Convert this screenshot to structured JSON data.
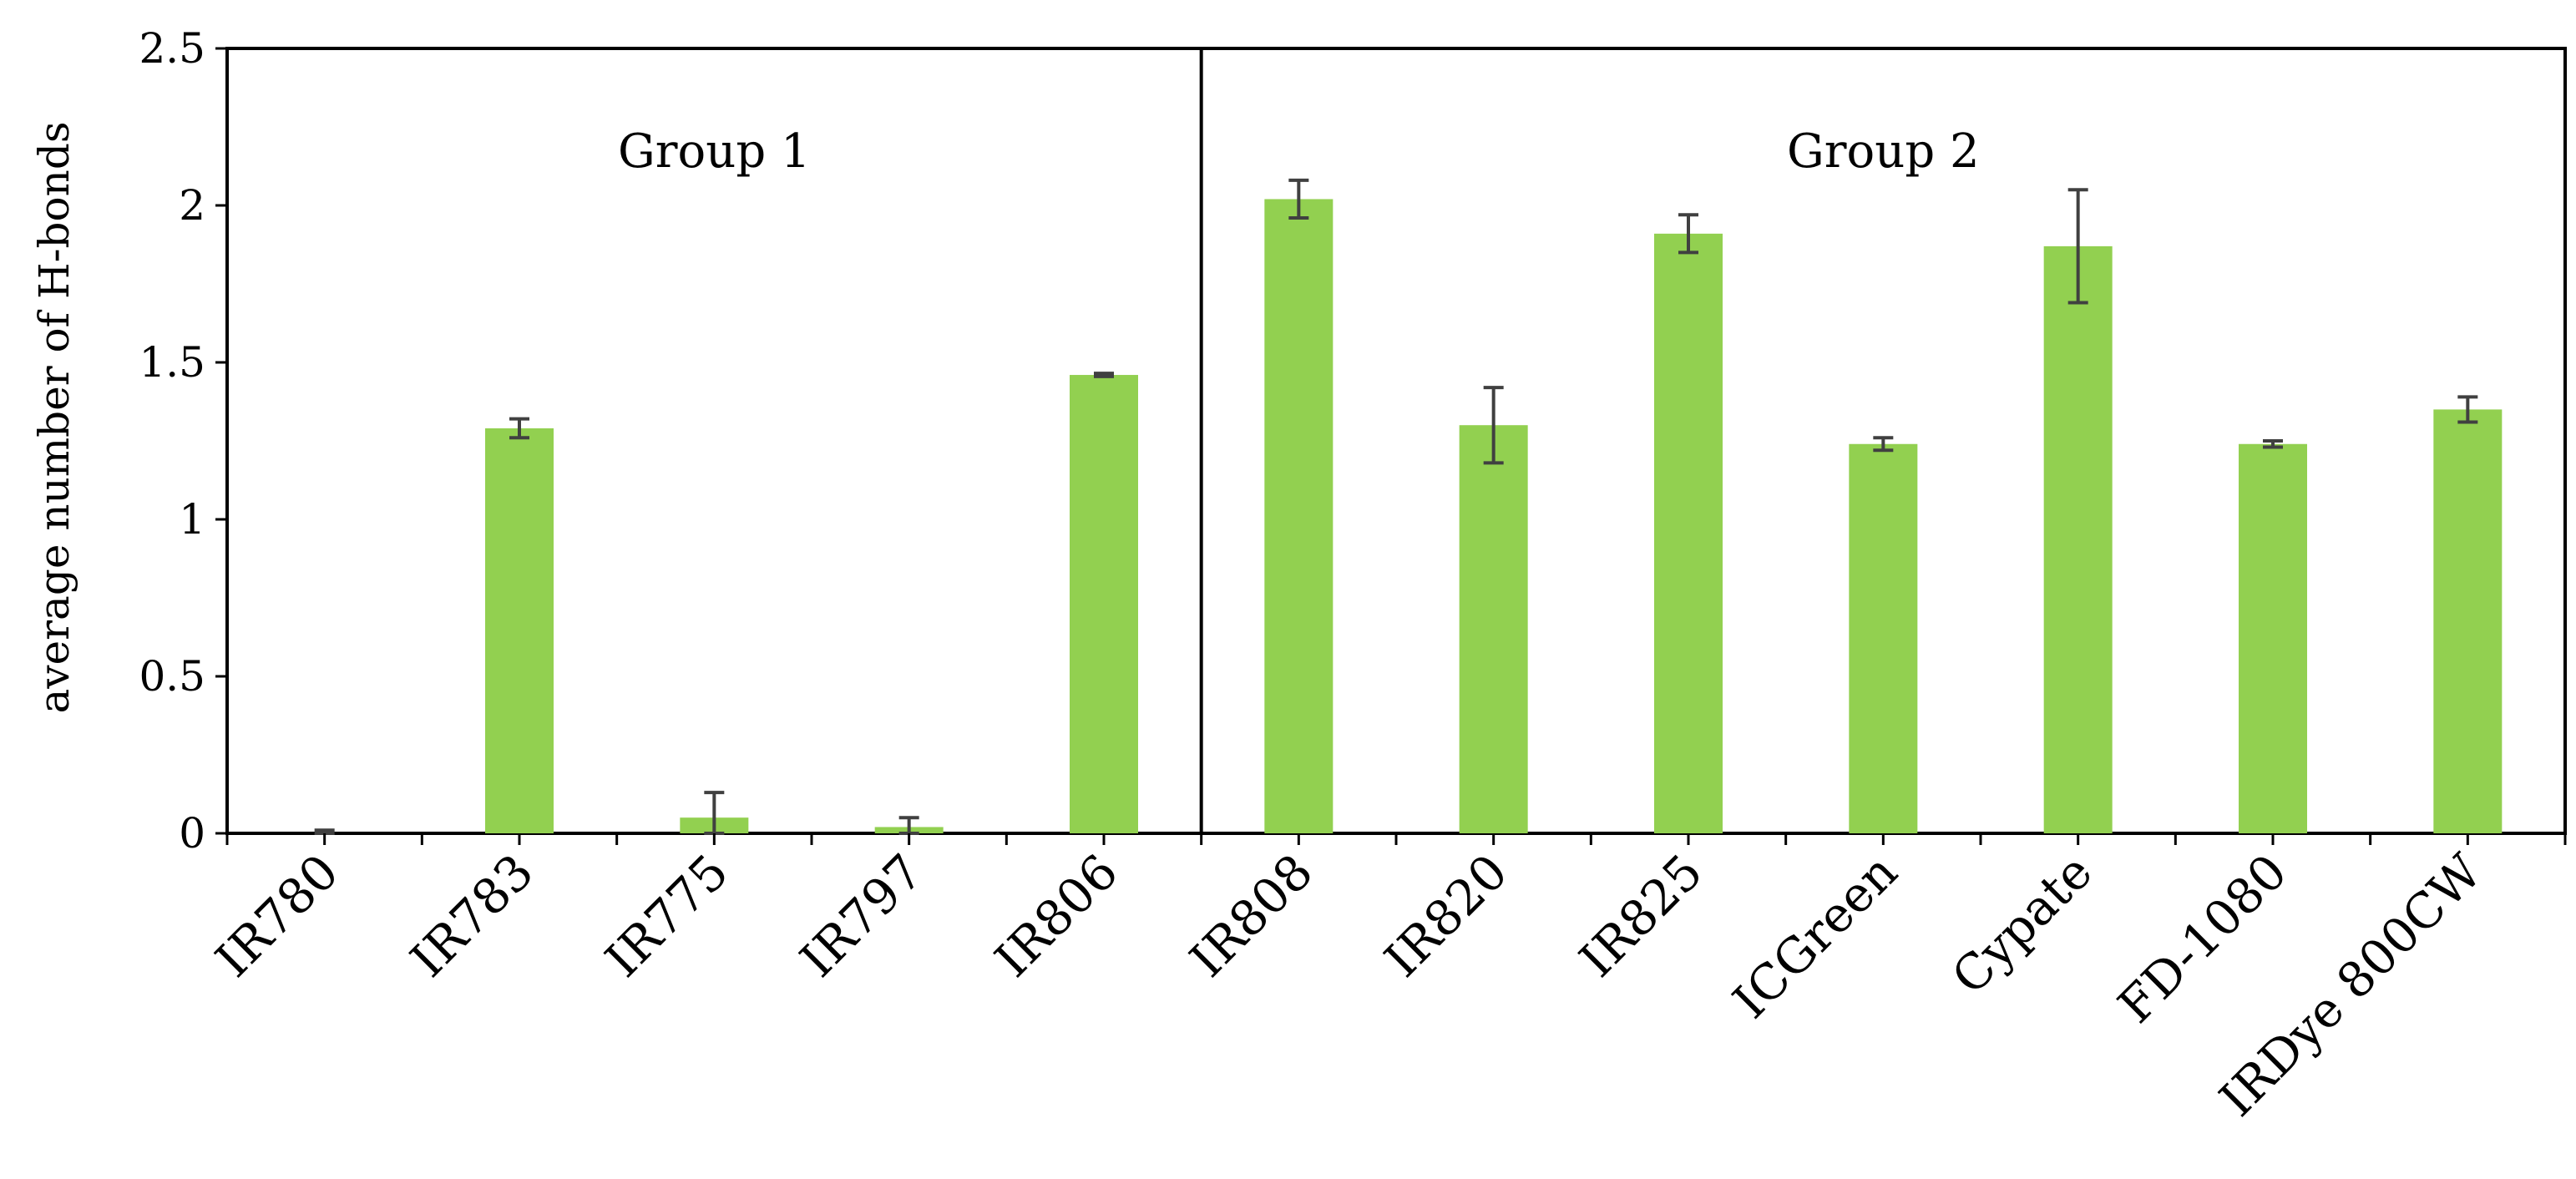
{
  "chart_data": {
    "type": "bar",
    "title": "",
    "ylabel": "average number of H-bonds",
    "xlabel": "",
    "ylim": [
      0,
      2.5
    ],
    "yticks": [
      0,
      0.5,
      1,
      1.5,
      2,
      2.5
    ],
    "ytick_labels": [
      "0",
      "0.5",
      "1",
      "1.5",
      "2",
      "2.5"
    ],
    "grid": false,
    "bar_color": "#92d050",
    "error_color": "#404040",
    "categories": [
      "IR780",
      "IR783",
      "IR775",
      "IR797",
      "IR806",
      "IR808",
      "IR820",
      "IR825",
      "ICGreen",
      "Cypate",
      "FD-1080",
      "IRDye 800CW"
    ],
    "values": [
      0.0,
      1.29,
      0.05,
      0.02,
      1.46,
      2.02,
      1.3,
      1.91,
      1.24,
      1.87,
      1.24,
      1.35
    ],
    "errors": [
      0.01,
      0.03,
      0.08,
      0.03,
      0.005,
      0.06,
      0.12,
      0.06,
      0.02,
      0.18,
      0.01,
      0.04
    ],
    "groups": [
      {
        "label": "Group 1",
        "first": 0,
        "last": 4
      },
      {
        "label": "Group 2",
        "first": 5,
        "last": 11
      }
    ]
  }
}
